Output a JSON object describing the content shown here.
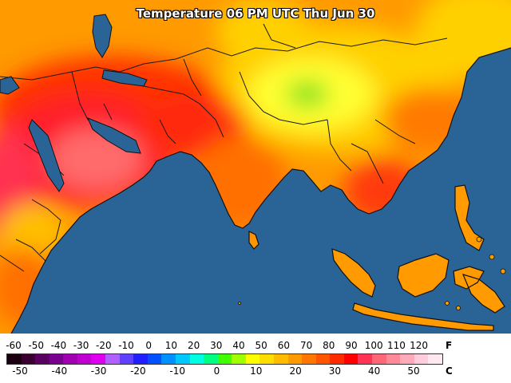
{
  "map": {
    "title": "Temperature 06 PM UTC Thu Jun 30",
    "ocean_color": "#2a6496",
    "border_color": "#1a1a1a"
  },
  "legend": {
    "f_unit": "F",
    "c_unit": "C",
    "f_ticks": [
      "-60",
      "-50",
      "-40",
      "-30",
      "-20",
      "-10",
      "0",
      "10",
      "20",
      "30",
      "40",
      "50",
      "60",
      "70",
      "80",
      "90",
      "100",
      "110",
      "120"
    ],
    "c_ticks": [
      "-50",
      "-40",
      "-30",
      "-20",
      "-10",
      "0",
      "10",
      "20",
      "30",
      "40",
      "50"
    ],
    "colors": [
      "#1a0010",
      "#3a0030",
      "#5a0060",
      "#7a0090",
      "#a000b0",
      "#c000d0",
      "#e000f0",
      "#b060ff",
      "#6040ff",
      "#2020ff",
      "#0050ff",
      "#0090ff",
      "#00c8ff",
      "#00ffe0",
      "#00ff80",
      "#40ff00",
      "#a0ff00",
      "#ffff00",
      "#ffdd00",
      "#ffbb00",
      "#ff9900",
      "#ff7700",
      "#ff5500",
      "#ff2a00",
      "#ff0000",
      "#ff3355",
      "#ff6677",
      "#ff8899",
      "#ffaabb",
      "#ffccdd",
      "#ffe8ee"
    ]
  }
}
